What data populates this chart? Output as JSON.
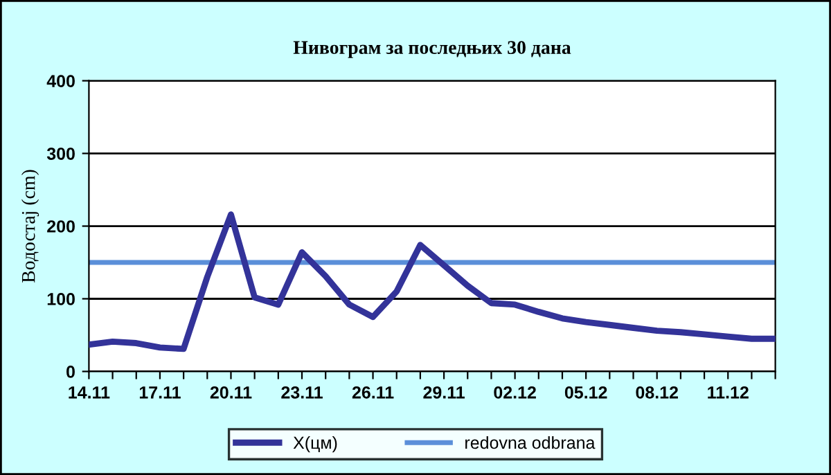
{
  "chart_data": {
    "type": "line",
    "title": "Нивограм за последњих 30 дана",
    "ylabel": "Водостај (cm)",
    "categories": [
      "14.11",
      null,
      null,
      "17.11",
      null,
      null,
      "20.11",
      null,
      null,
      "23.11",
      null,
      null,
      "26.11",
      null,
      null,
      "29.11",
      null,
      null,
      "02.12",
      null,
      null,
      "05.12",
      null,
      null,
      "08.12",
      null,
      null,
      "11.12",
      null,
      null
    ],
    "series": [
      {
        "name": "X(цм)",
        "color": "#333399",
        "values": [
          37,
          41,
          39,
          33,
          31,
          130,
          216,
          102,
          92,
          164,
          131,
          92,
          75,
          110,
          174,
          146,
          118,
          94,
          92,
          82,
          73,
          68,
          64,
          60,
          56,
          54,
          51,
          48,
          45,
          45
        ]
      }
    ],
    "ref_lines": [
      {
        "axis": "y",
        "value": 150,
        "label": "redovna odbrana",
        "color": "#5b8fd9"
      }
    ],
    "ylim": [
      0,
      400
    ],
    "yticks": [
      0,
      100,
      200,
      300,
      400
    ],
    "grid": "y",
    "legend": "bottom",
    "marker": "none",
    "line_style": "solid"
  }
}
